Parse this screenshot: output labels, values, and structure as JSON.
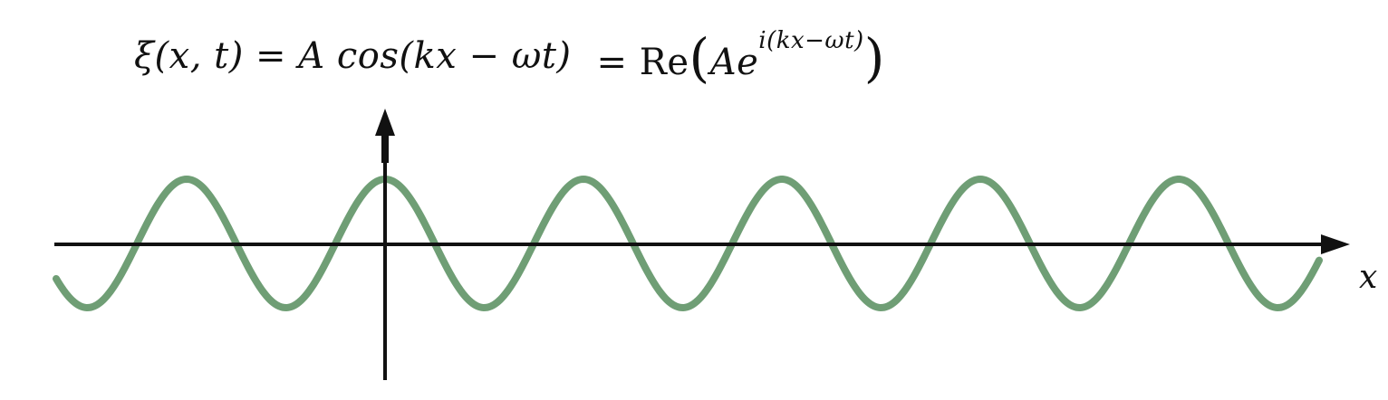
{
  "equation": {
    "lhs": "ξ(x, t) = A cos(kx − ωt)",
    "eq": "= ",
    "re": "Re",
    "open_paren": "(",
    "amplitude": "A",
    "exp_base": "e",
    "exponent": "i(kx−ωt)",
    "close_paren": ")"
  },
  "axes": {
    "x_label": "x"
  },
  "wave": {
    "color": "#6f9e75",
    "function": "cos",
    "peaks_visible": 6
  },
  "colors": {
    "axis": "#111111",
    "background": "#ffffff"
  }
}
